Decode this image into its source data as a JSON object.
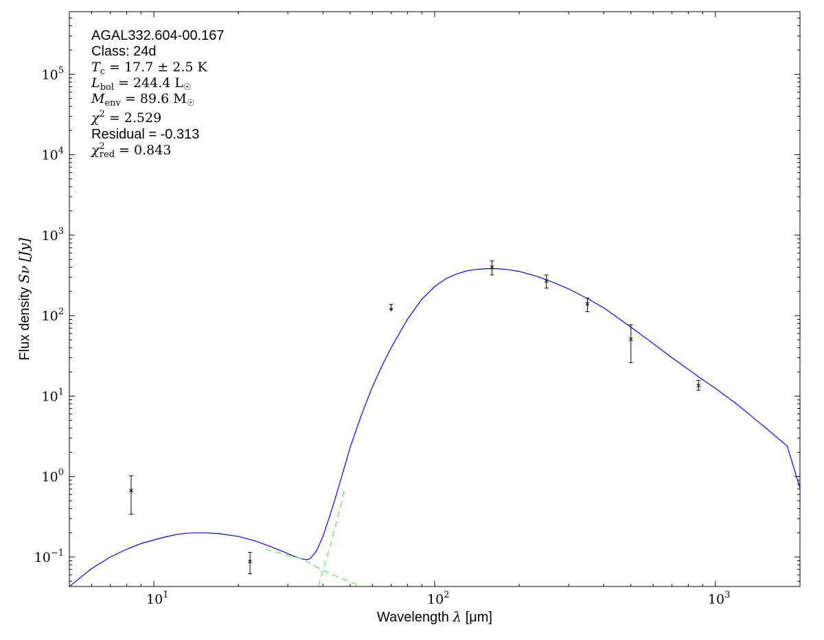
{
  "chart_data": {
    "type": "scatter",
    "title": "",
    "xlabel": "Wavelength",
    "xlabel_symbol": "λ",
    "xlabel_unit": "[μm]",
    "ylabel": "Flux density",
    "ylabel_symbol": "Sν",
    "ylabel_unit": "[Jy]",
    "xscale": "log",
    "yscale": "log",
    "xlim": [
      5,
      2000
    ],
    "ylim": [
      0.043,
      600000
    ],
    "x_ticks": [
      {
        "value": 10,
        "base": "10",
        "exp": "1"
      },
      {
        "value": 100,
        "base": "10",
        "exp": "2"
      },
      {
        "value": 1000,
        "base": "10",
        "exp": "3"
      }
    ],
    "y_ticks": [
      {
        "value": 0.1,
        "base": "10",
        "exp": "−1"
      },
      {
        "value": 1,
        "base": "10",
        "exp": "0"
      },
      {
        "value": 10,
        "base": "10",
        "exp": "1"
      },
      {
        "value": 100,
        "base": "10",
        "exp": "2"
      },
      {
        "value": 1000,
        "base": "10",
        "exp": "3"
      },
      {
        "value": 10000,
        "base": "10",
        "exp": "4"
      },
      {
        "value": 100000,
        "base": "10",
        "exp": "5"
      }
    ],
    "grid": false,
    "annotations": {
      "source": "AGAL332.604-00.167",
      "class_line": "Class: 24d",
      "tc_value": "17.7 ± 2.5",
      "tc_unit": "K",
      "lbol_value": "244.4",
      "lbol_unit": "L",
      "menv_value": "89.6",
      "menv_unit": "M",
      "chi2_value": "2.529",
      "residual_line": "Residual = -0.313",
      "chi2red_value": "0.843"
    },
    "points": [
      {
        "x": 8.3,
        "y": 0.67,
        "err_low": 0.34,
        "err_high": 1.02
      },
      {
        "x": 22.0,
        "y": 0.088,
        "err_low": 0.062,
        "err_high": 0.114
      },
      {
        "x": 160,
        "y": 400,
        "err_low": 320,
        "err_high": 480
      },
      {
        "x": 250,
        "y": 270,
        "err_low": 220,
        "err_high": 320
      },
      {
        "x": 350,
        "y": 140,
        "err_low": 112,
        "err_high": 165
      },
      {
        "x": 500,
        "y": 51,
        "err_low": 26,
        "err_high": 77
      },
      {
        "x": 870,
        "y": 13.5,
        "err_low": 11.8,
        "err_high": 15.7
      }
    ],
    "upper_limits": [
      {
        "x": 70,
        "y": 138,
        "y_arrow": 116
      }
    ],
    "series": [
      {
        "color": "#0000ff",
        "style": "solid",
        "x": [
          5,
          6,
          7,
          8,
          9,
          10,
          11,
          12,
          13,
          15,
          17,
          20,
          23,
          26,
          29,
          32,
          34,
          35,
          36,
          38,
          40,
          42,
          44,
          46,
          48,
          50,
          55,
          60,
          65,
          70,
          80,
          90,
          100,
          110,
          120,
          130,
          140,
          150,
          160,
          170,
          180,
          200,
          230,
          260,
          300,
          350,
          400,
          500,
          600,
          700,
          800,
          900,
          1000,
          1200,
          1500,
          1800,
          2000
        ],
        "y": [
          0.043,
          0.072,
          0.1,
          0.125,
          0.147,
          0.163,
          0.178,
          0.19,
          0.198,
          0.2,
          0.196,
          0.18,
          0.158,
          0.135,
          0.116,
          0.1,
          0.094,
          0.093,
          0.095,
          0.12,
          0.18,
          0.3,
          0.5,
          0.85,
          1.4,
          2.3,
          6.0,
          13,
          24,
          40,
          90,
          160,
          230,
          290,
          330,
          360,
          375,
          382,
          385,
          383,
          375,
          355,
          310,
          265,
          215,
          163,
          125,
          72,
          45,
          30,
          21.5,
          16,
          12.5,
          7.8,
          4.1,
          2.4,
          0.72
        ]
      },
      {
        "color": "#66e066",
        "style": "dashed",
        "x": [
          25,
          30,
          34,
          38,
          42,
          48,
          55
        ],
        "y": [
          0.125,
          0.105,
          0.094,
          0.075,
          0.063,
          0.052,
          0.043
        ]
      },
      {
        "color": "#66e066",
        "style": "dashed",
        "x": [
          38.5,
          40,
          42,
          44,
          46,
          48
        ],
        "y": [
          0.043,
          0.07,
          0.12,
          0.22,
          0.4,
          0.75
        ]
      }
    ]
  }
}
